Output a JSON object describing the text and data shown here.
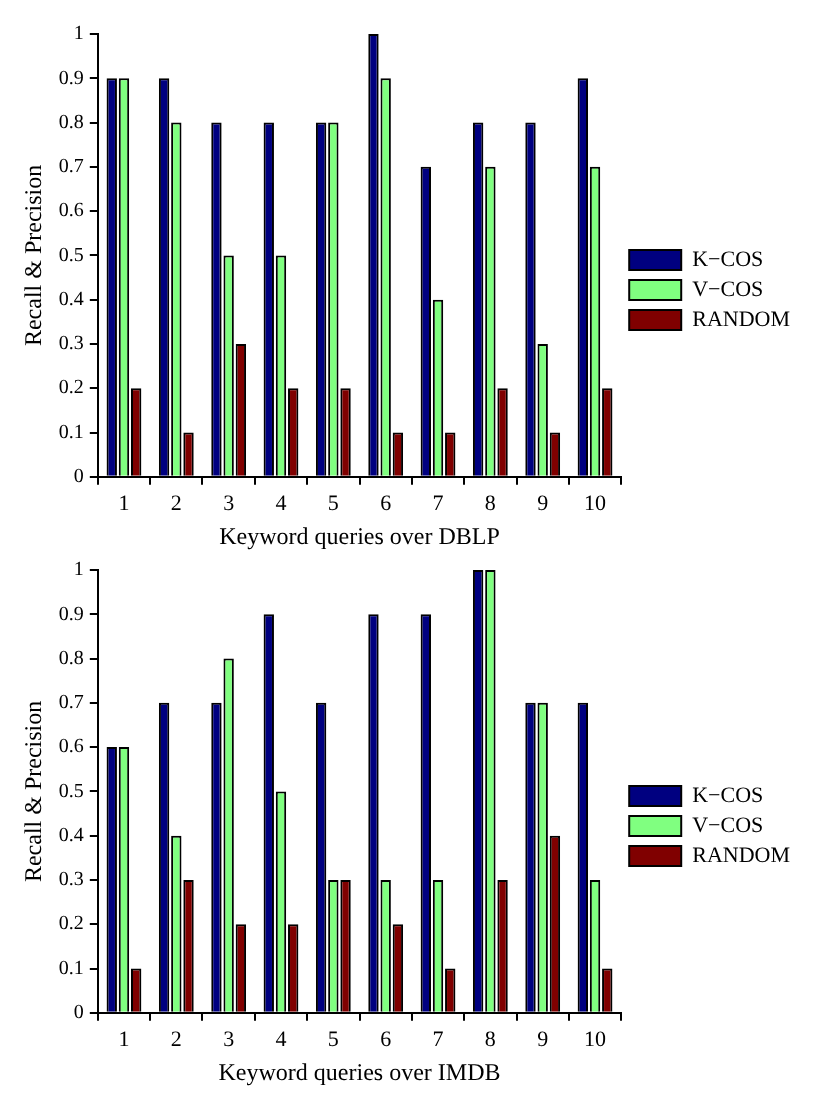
{
  "chart_data": [
    {
      "type": "bar",
      "xlabel": "Keyword queries over DBLP",
      "ylabel": "Recall & Precision",
      "categories": [
        "1",
        "2",
        "3",
        "4",
        "5",
        "6",
        "7",
        "8",
        "9",
        "10"
      ],
      "series": [
        {
          "name": "K−COS",
          "color": "#000080",
          "values": [
            0.9,
            0.9,
            0.8,
            0.8,
            0.8,
            1,
            0.7,
            0.8,
            0.8,
            0.9
          ]
        },
        {
          "name": "V−COS",
          "color": "#80ff80",
          "values": [
            0.9,
            0.8,
            0.5,
            0.5,
            0.8,
            0.9,
            0.4,
            0.7,
            0.3,
            0.7
          ]
        },
        {
          "name": "RANDOM",
          "color": "#800000",
          "values": [
            0.2,
            0.1,
            0.3,
            0.2,
            0.2,
            0.1,
            0.1,
            0.2,
            0.1,
            0.2
          ]
        }
      ],
      "ylim": [
        0,
        1
      ],
      "yticks": [
        0,
        0.1,
        0.2,
        0.3,
        0.4,
        0.5,
        0.6,
        0.7,
        0.8,
        0.9,
        1
      ],
      "grid": false,
      "legend": "right"
    },
    {
      "type": "bar",
      "xlabel": "Keyword queries over IMDB",
      "ylabel": "Recall & Precision",
      "categories": [
        "1",
        "2",
        "3",
        "4",
        "5",
        "6",
        "7",
        "8",
        "9",
        "10"
      ],
      "series": [
        {
          "name": "K−COS",
          "color": "#000080",
          "values": [
            0.6,
            0.7,
            0.7,
            0.9,
            0.7,
            0.9,
            0.9,
            1,
            0.7,
            0.7
          ]
        },
        {
          "name": "V−COS",
          "color": "#80ff80",
          "values": [
            0.6,
            0.4,
            0.8,
            0.5,
            0.3,
            0.3,
            0.3,
            1,
            0.7,
            0.3
          ]
        },
        {
          "name": "RANDOM",
          "color": "#800000",
          "values": [
            0.1,
            0.3,
            0.2,
            0.2,
            0.3,
            0.2,
            0.1,
            0.3,
            0.4,
            0.1
          ]
        }
      ],
      "ylim": [
        0,
        1
      ],
      "yticks": [
        0,
        0.1,
        0.2,
        0.3,
        0.4,
        0.5,
        0.6,
        0.7,
        0.8,
        0.9,
        1
      ],
      "grid": false,
      "legend": "right"
    }
  ]
}
